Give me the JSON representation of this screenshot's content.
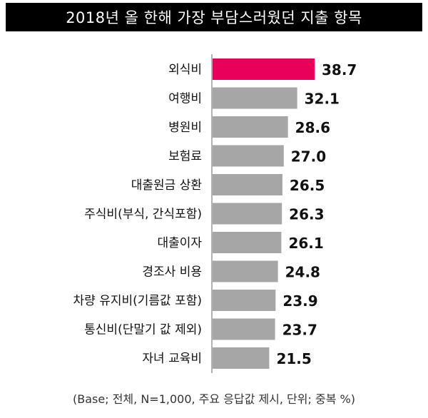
{
  "title": "2018년 올 한해 가장 부담스러웠던 지출 항목",
  "footnote": "(Base; 전체, N=1,000, 주요 응답값 제시, 단위; 중복 %)",
  "colors": {
    "highlight": "#E8005A",
    "bar": "#A6A6A6",
    "title_bg": "#000000",
    "title_text": "#FFFFFF",
    "axis": "#666666"
  },
  "chart_data": {
    "type": "bar",
    "orientation": "horizontal",
    "categories": [
      "외식비",
      "여행비",
      "병원비",
      "보험료",
      "대출원금 상환",
      "주식비(부식, 간식포함)",
      "대출이자",
      "경조사 비용",
      "차량 유지비(기름값 포함)",
      "통신비(단말기 값 제외)",
      "자녀 교육비"
    ],
    "values": [
      38.7,
      32.1,
      28.6,
      27.0,
      26.5,
      26.3,
      26.1,
      24.8,
      23.9,
      23.7,
      21.5
    ],
    "value_labels": [
      "38.7",
      "32.1",
      "28.6",
      "27.0",
      "26.5",
      "26.3",
      "26.1",
      "24.8",
      "23.9",
      "23.7",
      "21.5"
    ],
    "highlight_index": 0,
    "xlim": [
      0,
      38.7
    ],
    "title": "2018년 올 한해 가장 부담스러웠던 지출 항목",
    "xlabel": "",
    "ylabel": "",
    "grid": false,
    "legend": "none"
  }
}
